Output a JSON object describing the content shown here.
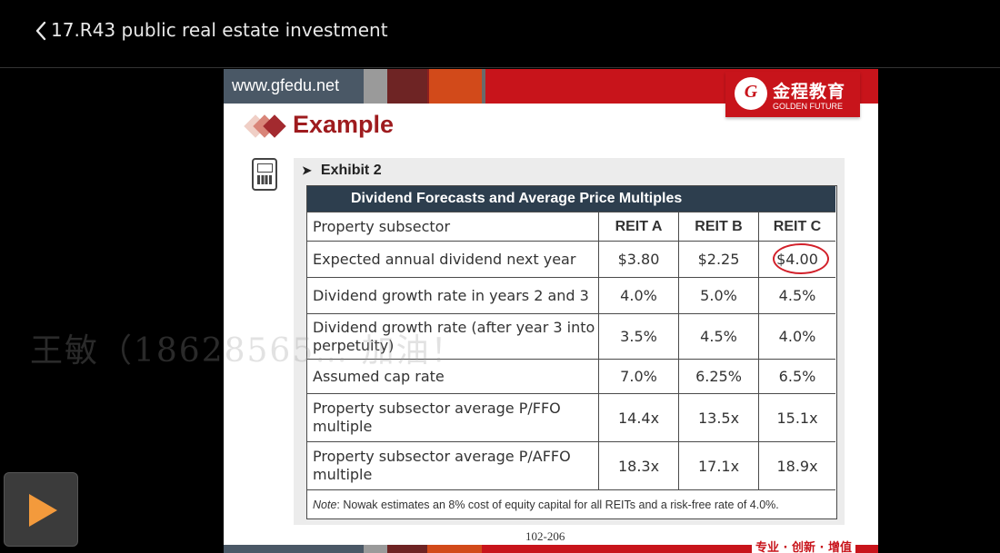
{
  "header": {
    "title": "17.R43 public real estate investment"
  },
  "slide": {
    "url": "www.gfedu.net",
    "logo_cn": "金程教育",
    "logo_en": "GOLDEN FUTURE",
    "heading": "Example",
    "exhibit_label": "Exhibit 2",
    "page_number": "102-206",
    "slogan": "专业 · 创新 · 增值",
    "colors": {
      "brand_red": "#c8141b",
      "heading_red": "#9e1b1e",
      "table_header": "#2d3e4e"
    },
    "table": {
      "title": "Dividend Forecasts and Average Price Multiples",
      "columns": [
        "Property subsector",
        "REIT A",
        "REIT B",
        "REIT C"
      ],
      "rows": [
        {
          "label": "Expected annual dividend next year",
          "a": "$3.80",
          "b": "$2.25",
          "c": "$4.00"
        },
        {
          "label": "Dividend growth rate in years 2 and 3",
          "a": "4.0%",
          "b": "5.0%",
          "c": "4.5%"
        },
        {
          "label": "Dividend growth rate (after year 3 into perpetuity)",
          "a": "3.5%",
          "b": "4.5%",
          "c": "4.0%"
        },
        {
          "label": "Assumed cap rate",
          "a": "7.0%",
          "b": "6.25%",
          "c": "6.5%"
        },
        {
          "label": "Property subsector average P/FFO multiple",
          "a": "14.4x",
          "b": "13.5x",
          "c": "15.1x"
        },
        {
          "label": "Property subsector average P/AFFO multiple",
          "a": "18.3x",
          "b": "17.1x",
          "c": "18.9x"
        }
      ],
      "note_label": "Note",
      "note_text": ": Nowak estimates an 8% cost of equity capital for all REITs and a risk-free rate of 4.0%."
    }
  },
  "watermark": "王敏（18628565…  加油！",
  "player": {
    "play_icon": "play-icon"
  }
}
